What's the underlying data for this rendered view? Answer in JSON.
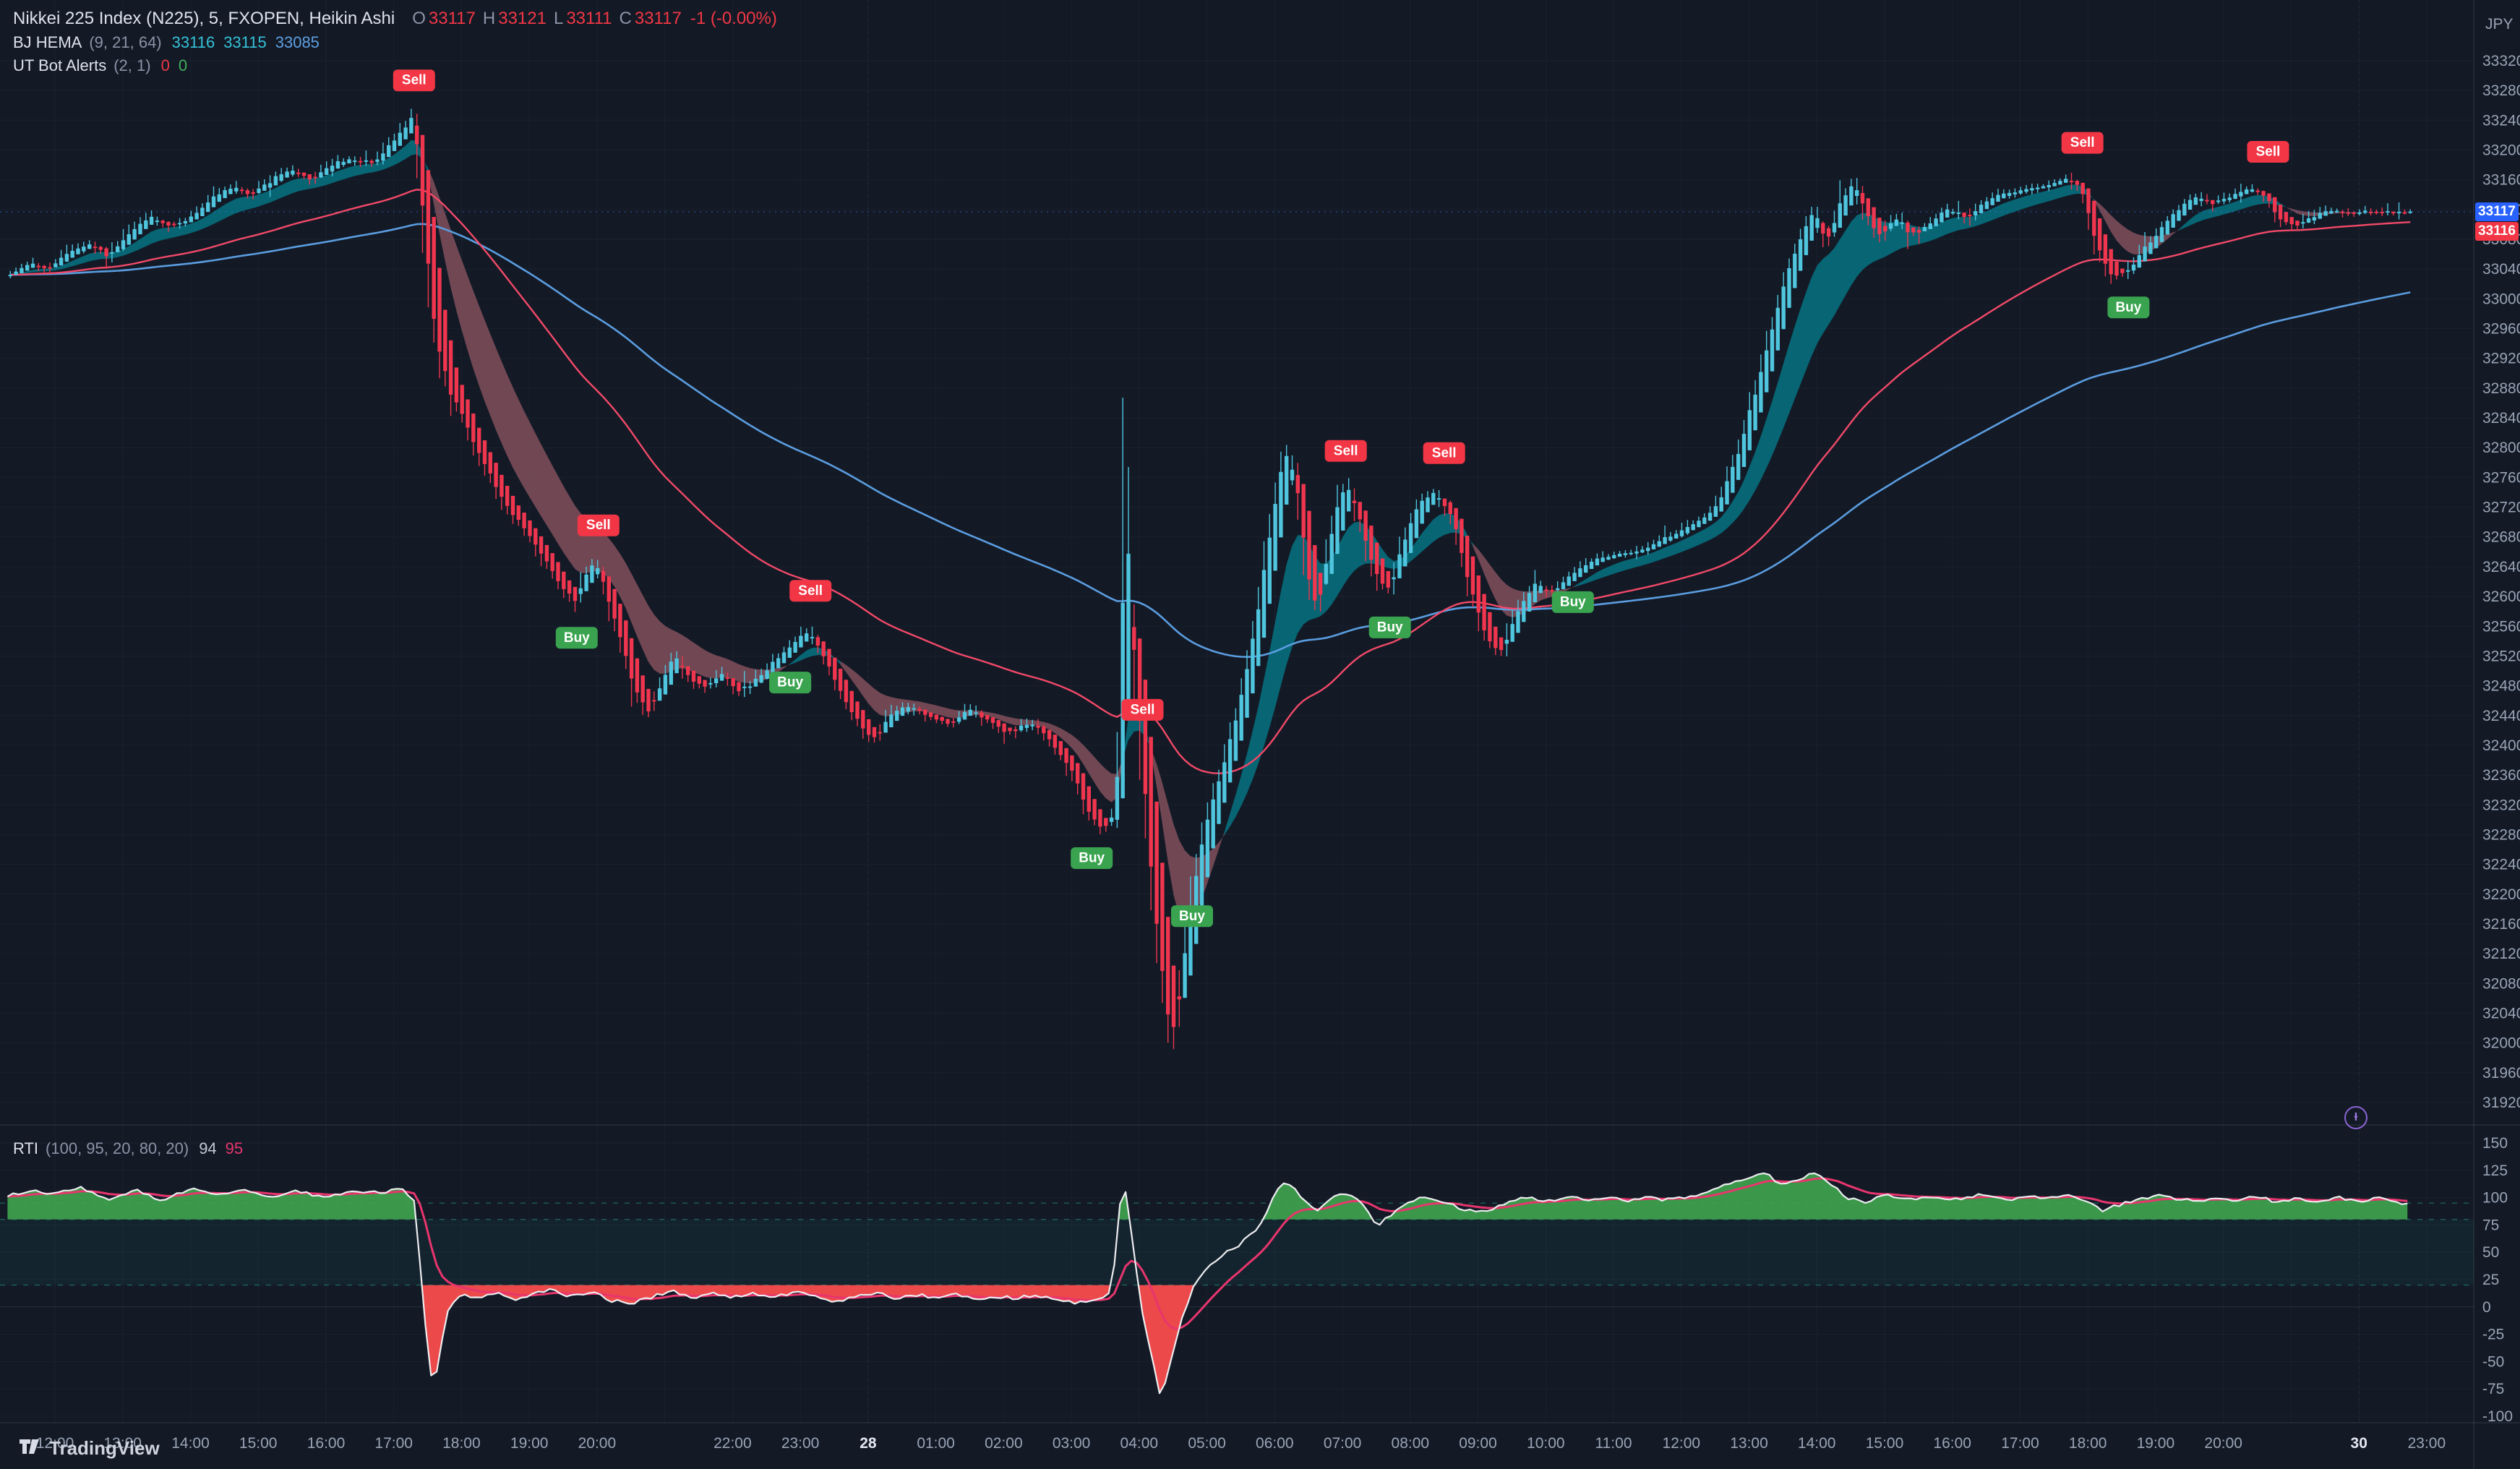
{
  "app": {
    "logo_text": "TradingView"
  },
  "legend": {
    "symbol_title": "Nikkei 225 Index (N225), 5, FXOPEN, Heikin Ashi",
    "ohlc": {
      "o_label": "O",
      "open": "33117",
      "h_label": "H",
      "high": "33121",
      "l_label": "L",
      "low": "33111",
      "c_label": "C",
      "close": "33117",
      "change": "-1 (-0.00%)"
    },
    "hema": {
      "title": "BJ HEMA",
      "params": "(9, 21, 64)",
      "v1": "33116",
      "v2": "33115",
      "v3": "33085"
    },
    "utbot": {
      "title": "UT Bot Alerts",
      "params": "(2, 1)",
      "v1": "0",
      "v2": "0"
    }
  },
  "rti_legend": {
    "title": "RTI",
    "params": "(100, 95, 20, 80, 20)",
    "v1": "94",
    "v2": "95"
  },
  "price_axis": {
    "currency": "JPY",
    "max": 33320,
    "min": 31920,
    "step": 40,
    "last_price": 33117,
    "last_price_label": "33117",
    "secondary_price": 33116,
    "secondary_label": "33116"
  },
  "rti_axis": {
    "max": 150,
    "min": -100,
    "step": 25
  },
  "colors": {
    "bg": "#131a26",
    "grid": "rgba(150,170,205,0.05)",
    "candle_up": "#4fc5de",
    "candle_down": "#f0354e",
    "ribbon_bull": "#06707f",
    "ribbon_bear": "#8a5560",
    "ma_fast": "#f24968",
    "ma_slow": "#5b9de0",
    "sell": "#f23645",
    "buy": "#3aa34f",
    "tag_last": "#2962ff",
    "tag_secondary": "#f23645",
    "axis_text": "#9aa4b5",
    "axis_text_bright": "#e4e8f2",
    "rti_line": "#ededf0",
    "rti_signal": "#e8356d",
    "rti_fill_up": "#3fa34d",
    "rti_fill_down": "#ff4d4d",
    "rti_level_line": "rgba(45,180,150,0.45)",
    "rti_zone": "rgba(38,166,154,0.08)",
    "last_price_line": "rgba(70,125,255,0.45)"
  },
  "chart_data": {
    "type": "candlestick",
    "symbol": "Nikkei 225 Index (N225)",
    "exchange": "FXOPEN",
    "interval_minutes": 5,
    "candle_style": "Heikin Ashi",
    "ylim": [
      31920,
      33320
    ],
    "t_start": -0.7,
    "t_end": 34.75,
    "indicators": {
      "ribbon_fast": 9,
      "ribbon_slow": 21,
      "ma_fast": 64,
      "ma_slow": 150
    },
    "price_path": [
      [
        -0.7,
        33030
      ],
      [
        -0.4,
        33048
      ],
      [
        -0.1,
        33040
      ],
      [
        0.2,
        33062
      ],
      [
        0.5,
        33075
      ],
      [
        0.8,
        33058
      ],
      [
        1.1,
        33088
      ],
      [
        1.4,
        33110
      ],
      [
        1.7,
        33098
      ],
      [
        2.0,
        33108
      ],
      [
        2.3,
        33132
      ],
      [
        2.6,
        33152
      ],
      [
        2.9,
        33138
      ],
      [
        3.2,
        33162
      ],
      [
        3.5,
        33175
      ],
      [
        3.8,
        33158
      ],
      [
        4.1,
        33182
      ],
      [
        4.4,
        33188
      ],
      [
        4.7,
        33180
      ],
      [
        4.95,
        33208
      ],
      [
        5.15,
        33228
      ],
      [
        5.3,
        33246
      ],
      [
        5.42,
        33140
      ],
      [
        5.55,
        33000
      ],
      [
        5.68,
        32920
      ],
      [
        5.82,
        32880
      ],
      [
        6.0,
        32848
      ],
      [
        6.2,
        32805
      ],
      [
        6.45,
        32760
      ],
      [
        6.7,
        32718
      ],
      [
        6.95,
        32690
      ],
      [
        7.2,
        32655
      ],
      [
        7.45,
        32618
      ],
      [
        7.7,
        32592
      ],
      [
        7.85,
        32635
      ],
      [
        8.0,
        32648
      ],
      [
        8.15,
        32600
      ],
      [
        8.35,
        32545
      ],
      [
        8.55,
        32478
      ],
      [
        8.75,
        32438
      ],
      [
        8.95,
        32482
      ],
      [
        9.15,
        32525
      ],
      [
        9.35,
        32490
      ],
      [
        9.6,
        32478
      ],
      [
        9.85,
        32498
      ],
      [
        10.1,
        32470
      ],
      [
        10.35,
        32488
      ],
      [
        10.6,
        32512
      ],
      [
        10.85,
        32532
      ],
      [
        11.1,
        32555
      ],
      [
        11.35,
        32520
      ],
      [
        11.6,
        32470
      ],
      [
        11.85,
        32432
      ],
      [
        12.1,
        32405
      ],
      [
        12.35,
        32442
      ],
      [
        12.6,
        32455
      ],
      [
        12.9,
        32438
      ],
      [
        13.2,
        32428
      ],
      [
        13.5,
        32448
      ],
      [
        13.8,
        32432
      ],
      [
        14.1,
        32418
      ],
      [
        14.4,
        32432
      ],
      [
        14.7,
        32405
      ],
      [
        15.0,
        32368
      ],
      [
        15.3,
        32302
      ],
      [
        15.5,
        32286
      ],
      [
        15.65,
        32312
      ],
      [
        15.72,
        32420
      ],
      [
        15.76,
        32835
      ],
      [
        15.84,
        32630
      ],
      [
        15.92,
        32535
      ],
      [
        16.02,
        32425
      ],
      [
        16.12,
        32300
      ],
      [
        16.25,
        32160
      ],
      [
        16.4,
        32050
      ],
      [
        16.5,
        31998
      ],
      [
        16.6,
        32060
      ],
      [
        16.72,
        32150
      ],
      [
        16.85,
        32235
      ],
      [
        17.0,
        32298
      ],
      [
        17.2,
        32360
      ],
      [
        17.45,
        32440
      ],
      [
        17.7,
        32555
      ],
      [
        17.95,
        32690
      ],
      [
        18.15,
        32802
      ],
      [
        18.35,
        32745
      ],
      [
        18.5,
        32615
      ],
      [
        18.65,
        32580
      ],
      [
        18.8,
        32665
      ],
      [
        18.95,
        32735
      ],
      [
        19.1,
        32750
      ],
      [
        19.3,
        32690
      ],
      [
        19.5,
        32625
      ],
      [
        19.7,
        32608
      ],
      [
        19.9,
        32672
      ],
      [
        20.1,
        32722
      ],
      [
        20.35,
        32742
      ],
      [
        20.6,
        32712
      ],
      [
        20.85,
        32625
      ],
      [
        21.1,
        32548
      ],
      [
        21.35,
        32522
      ],
      [
        21.6,
        32585
      ],
      [
        21.85,
        32618
      ],
      [
        22.1,
        32605
      ],
      [
        22.4,
        32632
      ],
      [
        22.7,
        32648
      ],
      [
        23.0,
        32655
      ],
      [
        23.4,
        32662
      ],
      [
        23.8,
        32678
      ],
      [
        24.2,
        32698
      ],
      [
        24.5,
        32715
      ],
      [
        24.8,
        32782
      ],
      [
        25.05,
        32860
      ],
      [
        25.3,
        32945
      ],
      [
        25.55,
        33030
      ],
      [
        25.8,
        33092
      ],
      [
        25.98,
        33122
      ],
      [
        26.15,
        33072
      ],
      [
        26.35,
        33128
      ],
      [
        26.55,
        33158
      ],
      [
        26.75,
        33108
      ],
      [
        26.95,
        33082
      ],
      [
        27.15,
        33110
      ],
      [
        27.4,
        33088
      ],
      [
        27.65,
        33098
      ],
      [
        27.9,
        33122
      ],
      [
        28.2,
        33108
      ],
      [
        28.5,
        33132
      ],
      [
        28.8,
        33142
      ],
      [
        29.1,
        33148
      ],
      [
        29.4,
        33152
      ],
      [
        29.7,
        33162
      ],
      [
        29.92,
        33148
      ],
      [
        30.1,
        33082
      ],
      [
        30.35,
        33028
      ],
      [
        30.6,
        33038
      ],
      [
        30.85,
        33068
      ],
      [
        31.1,
        33098
      ],
      [
        31.35,
        33122
      ],
      [
        31.6,
        33138
      ],
      [
        31.85,
        33128
      ],
      [
        32.1,
        33138
      ],
      [
        32.35,
        33148
      ],
      [
        32.6,
        33142
      ],
      [
        32.85,
        33105
      ],
      [
        33.1,
        33098
      ],
      [
        33.35,
        33112
      ],
      [
        33.6,
        33120
      ],
      [
        33.9,
        33114
      ],
      [
        34.2,
        33118
      ],
      [
        34.5,
        33115
      ],
      [
        34.75,
        33117
      ]
    ],
    "signals": [
      {
        "t": 5.3,
        "price": 33246,
        "side": "sell",
        "label": "Sell"
      },
      {
        "t": 7.7,
        "price": 32592,
        "side": "buy",
        "label": "Buy"
      },
      {
        "t": 8.02,
        "price": 32648,
        "side": "sell",
        "label": "Sell"
      },
      {
        "t": 10.85,
        "price": 32532,
        "side": "buy",
        "label": "Buy"
      },
      {
        "t": 11.15,
        "price": 32560,
        "side": "sell",
        "label": "Sell"
      },
      {
        "t": 15.3,
        "price": 32296,
        "side": "buy",
        "label": "Buy"
      },
      {
        "t": 16.05,
        "price": 32400,
        "side": "sell",
        "label": "Sell"
      },
      {
        "t": 16.78,
        "price": 32218,
        "side": "buy",
        "label": "Buy"
      },
      {
        "t": 19.05,
        "price": 32748,
        "side": "sell",
        "label": "Sell"
      },
      {
        "t": 19.7,
        "price": 32606,
        "side": "buy",
        "label": "Buy"
      },
      {
        "t": 20.5,
        "price": 32745,
        "side": "sell",
        "label": "Sell"
      },
      {
        "t": 22.4,
        "price": 32640,
        "side": "buy",
        "label": "Buy"
      },
      {
        "t": 29.92,
        "price": 33162,
        "side": "sell",
        "label": "Sell"
      },
      {
        "t": 30.6,
        "price": 33036,
        "side": "buy",
        "label": "Buy"
      },
      {
        "t": 32.66,
        "price": 33150,
        "side": "sell",
        "label": "Sell"
      }
    ],
    "time_labels": [
      {
        "t": 0,
        "text": "12:00"
      },
      {
        "t": 1,
        "text": "13:00"
      },
      {
        "t": 2,
        "text": "14:00"
      },
      {
        "t": 3,
        "text": "15:00"
      },
      {
        "t": 4,
        "text": "16:00"
      },
      {
        "t": 5,
        "text": "17:00"
      },
      {
        "t": 6,
        "text": "18:00"
      },
      {
        "t": 7,
        "text": "19:00"
      },
      {
        "t": 8,
        "text": "20:00"
      },
      {
        "t": 10,
        "text": "22:00"
      },
      {
        "t": 11,
        "text": "23:00"
      },
      {
        "t": 12,
        "text": "28",
        "day": true
      },
      {
        "t": 13,
        "text": "01:00"
      },
      {
        "t": 14,
        "text": "02:00"
      },
      {
        "t": 15,
        "text": "03:00"
      },
      {
        "t": 16,
        "text": "04:00"
      },
      {
        "t": 17,
        "text": "05:00"
      },
      {
        "t": 18,
        "text": "06:00"
      },
      {
        "t": 19,
        "text": "07:00"
      },
      {
        "t": 20,
        "text": "08:00"
      },
      {
        "t": 21,
        "text": "09:00"
      },
      {
        "t": 22,
        "text": "10:00"
      },
      {
        "t": 23,
        "text": "11:00"
      },
      {
        "t": 24,
        "text": "12:00"
      },
      {
        "t": 25,
        "text": "13:00"
      },
      {
        "t": 26,
        "text": "14:00"
      },
      {
        "t": 27,
        "text": "15:00"
      },
      {
        "t": 28,
        "text": "16:00"
      },
      {
        "t": 29,
        "text": "17:00"
      },
      {
        "t": 30,
        "text": "18:00"
      },
      {
        "t": 31,
        "text": "19:00"
      },
      {
        "t": 32,
        "text": "20:00"
      },
      {
        "t": 34,
        "text": "30",
        "day": true
      },
      {
        "t": 35,
        "text": "23:00"
      }
    ],
    "rti": {
      "levels": [
        95,
        80,
        20
      ],
      "last_fast": 94,
      "last_signal": 95,
      "ylim": [
        -100,
        150
      ],
      "path": [
        [
          -0.7,
          102
        ],
        [
          -0.3,
          106
        ],
        [
          0,
          103
        ],
        [
          0.4,
          109
        ],
        [
          0.8,
          99
        ],
        [
          1.2,
          107
        ],
        [
          1.6,
          97
        ],
        [
          2.0,
          109
        ],
        [
          2.4,
          103
        ],
        [
          2.8,
          108
        ],
        [
          3.2,
          100
        ],
        [
          3.6,
          106
        ],
        [
          4.0,
          99
        ],
        [
          4.4,
          107
        ],
        [
          4.8,
          104
        ],
        [
          5.1,
          108
        ],
        [
          5.3,
          98
        ],
        [
          5.42,
          20
        ],
        [
          5.5,
          -40
        ],
        [
          5.58,
          -78
        ],
        [
          5.7,
          -35
        ],
        [
          5.82,
          2
        ],
        [
          6.0,
          12
        ],
        [
          6.25,
          7
        ],
        [
          6.5,
          13
        ],
        [
          6.75,
          6
        ],
        [
          7.0,
          11
        ],
        [
          7.3,
          16
        ],
        [
          7.6,
          9
        ],
        [
          7.9,
          14
        ],
        [
          8.2,
          6
        ],
        [
          8.5,
          3
        ],
        [
          8.8,
          9
        ],
        [
          9.1,
          15
        ],
        [
          9.4,
          8
        ],
        [
          9.7,
          12
        ],
        [
          10.0,
          9
        ],
        [
          10.3,
          13
        ],
        [
          10.6,
          8
        ],
        [
          10.9,
          14
        ],
        [
          11.2,
          10
        ],
        [
          11.5,
          5
        ],
        [
          11.8,
          9
        ],
        [
          12.1,
          13
        ],
        [
          12.4,
          8
        ],
        [
          12.7,
          11
        ],
        [
          13.0,
          9
        ],
        [
          13.3,
          12
        ],
        [
          13.6,
          7
        ],
        [
          13.9,
          10
        ],
        [
          14.2,
          8
        ],
        [
          14.5,
          11
        ],
        [
          14.8,
          6
        ],
        [
          15.1,
          4
        ],
        [
          15.4,
          7
        ],
        [
          15.6,
          15
        ],
        [
          15.76,
          125
        ],
        [
          15.9,
          60
        ],
        [
          16.05,
          -5
        ],
        [
          16.2,
          -50
        ],
        [
          16.32,
          -85
        ],
        [
          16.45,
          -55
        ],
        [
          16.6,
          -15
        ],
        [
          16.8,
          18
        ],
        [
          17.0,
          35
        ],
        [
          17.25,
          48
        ],
        [
          17.5,
          58
        ],
        [
          17.75,
          72
        ],
        [
          18.0,
          102
        ],
        [
          18.15,
          116
        ],
        [
          18.3,
          108
        ],
        [
          18.45,
          96
        ],
        [
          18.6,
          88
        ],
        [
          18.8,
          97
        ],
        [
          19.0,
          105
        ],
        [
          19.25,
          98
        ],
        [
          19.5,
          74
        ],
        [
          19.75,
          86
        ],
        [
          20.0,
          97
        ],
        [
          20.25,
          101
        ],
        [
          20.5,
          96
        ],
        [
          20.75,
          90
        ],
        [
          21.0,
          86
        ],
        [
          21.25,
          91
        ],
        [
          21.5,
          97
        ],
        [
          21.75,
          100
        ],
        [
          22.0,
          96
        ],
        [
          22.3,
          101
        ],
        [
          22.6,
          98
        ],
        [
          22.9,
          100
        ],
        [
          23.2,
          97
        ],
        [
          23.5,
          100
        ],
        [
          23.8,
          98
        ],
        [
          24.1,
          101
        ],
        [
          24.4,
          105
        ],
        [
          24.7,
          112
        ],
        [
          25.0,
          118
        ],
        [
          25.25,
          122
        ],
        [
          25.5,
          111
        ],
        [
          25.75,
          117
        ],
        [
          26.0,
          124
        ],
        [
          26.2,
          112
        ],
        [
          26.45,
          100
        ],
        [
          26.7,
          96
        ],
        [
          27.0,
          103
        ],
        [
          27.3,
          98
        ],
        [
          27.6,
          101
        ],
        [
          27.9,
          97
        ],
        [
          28.2,
          100
        ],
        [
          28.5,
          103
        ],
        [
          28.8,
          98
        ],
        [
          29.1,
          102
        ],
        [
          29.4,
          99
        ],
        [
          29.7,
          103
        ],
        [
          30.0,
          96
        ],
        [
          30.2,
          88
        ],
        [
          30.45,
          93
        ],
        [
          30.7,
          98
        ],
        [
          31.0,
          102
        ],
        [
          31.3,
          99
        ],
        [
          31.6,
          97
        ],
        [
          31.9,
          100
        ],
        [
          32.2,
          97
        ],
        [
          32.5,
          101
        ],
        [
          32.8,
          96
        ],
        [
          33.1,
          99
        ],
        [
          33.4,
          97
        ],
        [
          33.7,
          100
        ],
        [
          34.0,
          97
        ],
        [
          34.3,
          99
        ],
        [
          34.75,
          94
        ]
      ]
    }
  }
}
